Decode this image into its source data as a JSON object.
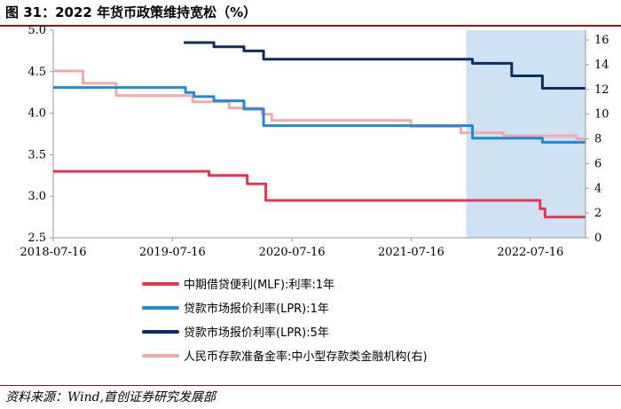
{
  "figure": {
    "title": "图 31：2022 年货币政策维持宽松（%）",
    "source": "资料来源：Wind,首创证券研究发展部"
  },
  "chart_data": {
    "type": "line",
    "title": "图 31：2022 年货币政策维持宽松（%）",
    "x_ticks": [
      "2018-07-16",
      "2019-07-16",
      "2020-07-16",
      "2021-07-16",
      "2022-07-16"
    ],
    "xlim": [
      "2018-07-16",
      "2023-01-01"
    ],
    "y_left": {
      "ticks": [
        "2.5",
        "3.0",
        "3.5",
        "4.0",
        "4.5",
        "5.0"
      ],
      "ylim": [
        2.5,
        5.0
      ]
    },
    "y_right": {
      "ticks": [
        "0",
        "2",
        "4",
        "6",
        "8",
        "10",
        "12",
        "14",
        "16"
      ],
      "ylim": [
        0,
        16.8
      ]
    },
    "shaded_region": {
      "from": "2022-01-01",
      "to": "2023-01-01",
      "color": "#cfe2f3"
    },
    "grid": false,
    "legend_position": "bottom",
    "series": [
      {
        "name": "中期借贷便利(MLF):利率:1年",
        "axis": "left",
        "color": "#e8344e",
        "points": [
          [
            "2018-07-16",
            3.3
          ],
          [
            "2019-10-16",
            3.3
          ],
          [
            "2019-11-05",
            3.25
          ],
          [
            "2020-02-17",
            3.25
          ],
          [
            "2020-03-01",
            3.15
          ],
          [
            "2020-04-15",
            3.15
          ],
          [
            "2020-04-27",
            2.95
          ],
          [
            "2022-01-17",
            2.95
          ],
          [
            "2022-08-15",
            2.85
          ],
          [
            "2022-08-30",
            2.75
          ],
          [
            "2022-12-31",
            2.75
          ]
        ]
      },
      {
        "name": "贷款市场报价利率(LPR):1年",
        "axis": "left",
        "color": "#1f8ad6",
        "points": [
          [
            "2018-07-16",
            4.31
          ],
          [
            "2019-08-20",
            4.31
          ],
          [
            "2019-08-25",
            4.25
          ],
          [
            "2019-09-20",
            4.2
          ],
          [
            "2019-11-20",
            4.15
          ],
          [
            "2020-02-20",
            4.05
          ],
          [
            "2020-04-20",
            3.85
          ],
          [
            "2021-12-20",
            3.85
          ],
          [
            "2022-01-20",
            3.7
          ],
          [
            "2022-08-22",
            3.65
          ],
          [
            "2022-12-31",
            3.65
          ]
        ]
      },
      {
        "name": "贷款市场报价利率(LPR):5年",
        "axis": "left",
        "color": "#0d2d5e",
        "points": [
          [
            "2019-08-20",
            4.85
          ],
          [
            "2019-10-20",
            4.85
          ],
          [
            "2019-11-20",
            4.8
          ],
          [
            "2020-02-20",
            4.75
          ],
          [
            "2020-04-20",
            4.65
          ],
          [
            "2022-01-20",
            4.6
          ],
          [
            "2022-05-20",
            4.45
          ],
          [
            "2022-08-22",
            4.3
          ],
          [
            "2022-12-31",
            4.3
          ]
        ]
      },
      {
        "name": "人民币存款准备金率:中小型存款类金融机构(右)",
        "axis": "right",
        "color": "#f4a8a8",
        "points": [
          [
            "2018-07-16",
            13.5
          ],
          [
            "2018-10-15",
            13.5
          ],
          [
            "2018-10-15",
            12.5
          ],
          [
            "2019-01-15",
            12.5
          ],
          [
            "2019-01-25",
            12.0
          ],
          [
            "2019-01-25",
            11.5
          ],
          [
            "2019-09-16",
            11.5
          ],
          [
            "2019-09-16",
            11.0
          ],
          [
            "2020-01-06",
            10.5
          ],
          [
            "2020-04-15",
            10.0
          ],
          [
            "2020-05-15",
            9.5
          ],
          [
            "2021-07-15",
            9.0
          ],
          [
            "2021-12-15",
            8.5
          ],
          [
            "2022-04-25",
            8.25
          ],
          [
            "2022-12-05",
            8.0
          ],
          [
            "2022-12-31",
            8.0
          ]
        ]
      }
    ]
  }
}
